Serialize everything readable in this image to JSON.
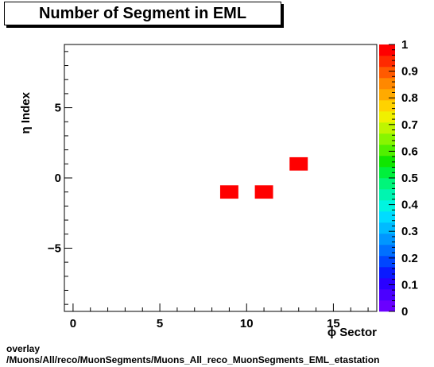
{
  "title": "Number of Segment in EML",
  "footer": {
    "line1": "overlay",
    "line2": "/Muons/All/reco/MuonSegments/Muons_All_reco_MuonSegments_EML_etastation"
  },
  "chart_data": {
    "type": "heatmap",
    "title": "Number of Segment in EML",
    "xlabel": "ϕ Sector",
    "ylabel": "η Index",
    "xlim": [
      -0.5,
      17.5
    ],
    "ylim": [
      -9.5,
      9.5
    ],
    "x_ticks": [
      0,
      5,
      10,
      15
    ],
    "y_ticks": [
      -5,
      0,
      5
    ],
    "colorbar": {
      "range": [
        0,
        1
      ],
      "ticks": [
        "0",
        "0.1",
        "0.2",
        "0.3",
        "0.4",
        "0.5",
        "0.6",
        "0.7",
        "0.8",
        "0.9",
        "1"
      ]
    },
    "cells": [
      {
        "x": 9,
        "y": -1,
        "value": 1
      },
      {
        "x": 11,
        "y": -1,
        "value": 1
      },
      {
        "x": 13,
        "y": 1,
        "value": 1
      }
    ]
  }
}
